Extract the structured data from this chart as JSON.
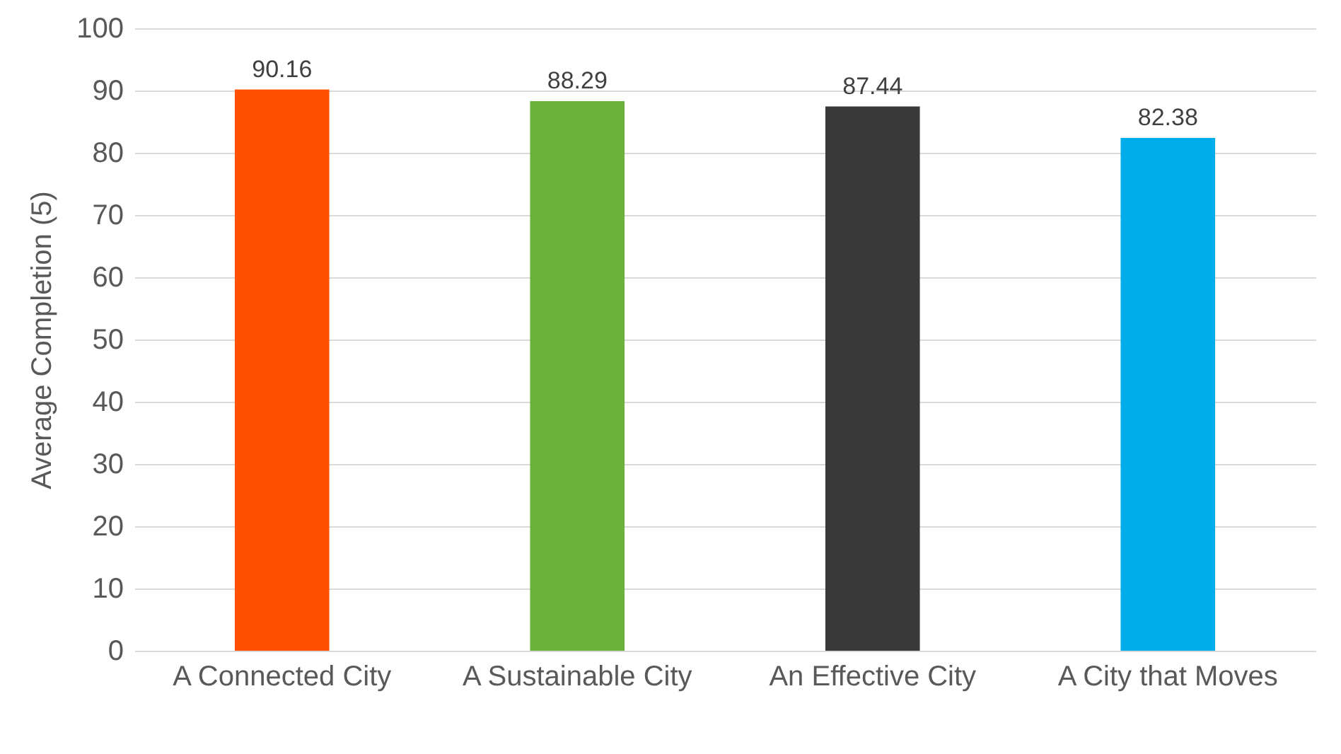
{
  "chart_data": {
    "type": "bar",
    "ylabel": "Average Completion (5)",
    "categories": [
      "A Connected City",
      "A Sustainable City",
      "An Effective City",
      "A City that Moves"
    ],
    "values": [
      90.16,
      88.29,
      87.44,
      82.38
    ],
    "colors": [
      "#ff5000",
      "#6bb23d",
      "#393939",
      "#00adeb"
    ],
    "ylim": [
      0,
      100
    ],
    "yticks": [
      0,
      10,
      20,
      30,
      40,
      50,
      60,
      70,
      80,
      90,
      100
    ],
    "grid": "y",
    "data_labels": true
  }
}
